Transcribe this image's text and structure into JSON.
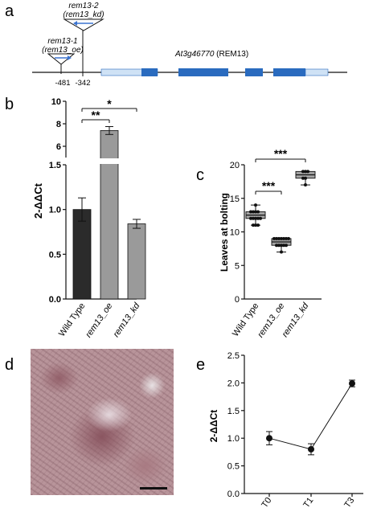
{
  "panel_labels": {
    "a": "a",
    "b": "b",
    "c": "c",
    "d": "d",
    "e": "e"
  },
  "panel_a": {
    "gene_label": "At3g46770",
    "gene_suffix": " (REM13)",
    "insert_top_line1": "rem13-2",
    "insert_top_line2": "(rem13_kd)",
    "insert_bottom_line1": "rem13-1",
    "insert_bottom_line2": "(rem13_oe)",
    "pos1": "-481",
    "pos2": "-342",
    "colors": {
      "exon": "#2a6bbf",
      "utr": "#cfe2f5",
      "arrow": "#3a73d0"
    }
  },
  "chart_data": [
    {
      "id": "b",
      "type": "bar",
      "ylabel": "2-ΔΔCt",
      "categories": [
        "Wild Type",
        "rem13_oe",
        "rem13_kd"
      ],
      "values": [
        1.0,
        7.4,
        0.84
      ],
      "errors": [
        0.13,
        0.35,
        0.05
      ],
      "colors": [
        "#2b2b2b",
        "#9a9a9a",
        "#9a9a9a"
      ],
      "broken_axis": {
        "lower_range": [
          0.0,
          1.5
        ],
        "upper_range": [
          5,
          10
        ]
      },
      "yticks_lower": [
        "0.0",
        "0.5",
        "1.0",
        "1.5"
      ],
      "yticks_upper": [
        "6",
        "8",
        "10"
      ],
      "significance": [
        {
          "pair": [
            "Wild Type",
            "rem13_oe"
          ],
          "label": "**"
        },
        {
          "pair": [
            "Wild Type",
            "rem13_kd"
          ],
          "label": "*"
        }
      ]
    },
    {
      "id": "c",
      "type": "box",
      "ylabel": "Leaves at bolting",
      "categories": [
        "Wild Type",
        "rem13_oe",
        "rem13_kd"
      ],
      "ylim": [
        0,
        20
      ],
      "yticks": [
        "0",
        "5",
        "10",
        "15",
        "20"
      ],
      "boxes": [
        {
          "min": 11.0,
          "q1": 12.0,
          "median": 12.5,
          "q3": 13.0,
          "max": 14.0,
          "points": [
            11,
            11,
            11,
            12,
            12,
            12,
            12,
            12,
            13,
            13,
            13,
            13,
            14
          ]
        },
        {
          "min": 7.0,
          "q1": 8.0,
          "median": 8.5,
          "q3": 9.0,
          "max": 9.0,
          "points": [
            7,
            8,
            8,
            8,
            8,
            8,
            9,
            9,
            9,
            9,
            9,
            9,
            9
          ]
        },
        {
          "min": 17.0,
          "q1": 18.0,
          "median": 18.5,
          "q3": 19.0,
          "max": 19.0,
          "points": [
            17,
            18,
            18,
            19,
            19,
            19
          ]
        }
      ],
      "box_color": "#a6a6a6",
      "significance": [
        {
          "pair": [
            "Wild Type",
            "rem13_oe"
          ],
          "label": "***"
        },
        {
          "pair": [
            "Wild Type",
            "rem13_kd"
          ],
          "label": "***"
        }
      ]
    },
    {
      "id": "e",
      "type": "line",
      "ylabel": "2-ΔΔCt",
      "categories": [
        "T0",
        "T1",
        "T3"
      ],
      "values": [
        1.0,
        0.8,
        1.99
      ],
      "errors": [
        0.12,
        0.1,
        0.06
      ],
      "ylim": [
        0.0,
        2.5
      ],
      "yticks": [
        "0.0",
        "0.5",
        "1.0",
        "1.5",
        "2.0",
        "2.5"
      ]
    }
  ]
}
